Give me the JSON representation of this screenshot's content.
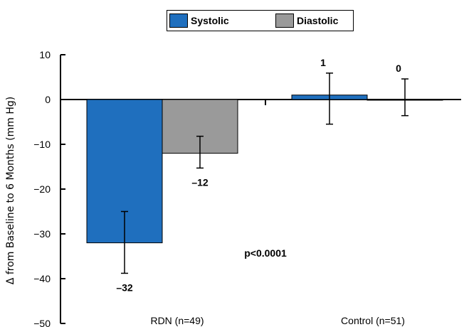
{
  "chart_data": {
    "type": "bar",
    "title": "",
    "ylabel": "Δ from Baseline to 6 Months (mm Hg)",
    "xlabel": "",
    "ylim": [
      -50,
      10
    ],
    "yticks": [
      10,
      0,
      -10,
      -20,
      -30,
      -40,
      -50
    ],
    "categories": [
      "RDN (n=49)",
      "Control (n=51)"
    ],
    "legend_position": "top-center",
    "grid": false,
    "series": [
      {
        "name": "Systolic",
        "color": "#1f6fbe",
        "values": [
          -32,
          1
        ],
        "error_low": [
          -38.8,
          -5.5
        ],
        "error_high": [
          -25.0,
          5.9
        ],
        "data_labels": [
          "–32",
          "1"
        ]
      },
      {
        "name": "Diastolic",
        "color": "#9a9a9a",
        "values": [
          -12,
          0
        ],
        "error_low": [
          -15.3,
          -3.6
        ],
        "error_high": [
          -8.2,
          4.6
        ],
        "data_labels": [
          "–12",
          "0"
        ]
      }
    ],
    "annotations": [
      {
        "text": "p<0.0001"
      }
    ]
  }
}
